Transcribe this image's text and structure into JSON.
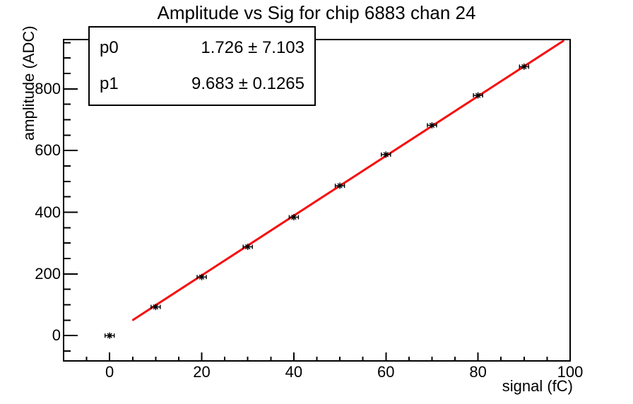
{
  "title": "Amplitude vs Sig for chip 6883 chan 24",
  "stats": {
    "rows": [
      {
        "label": "p0",
        "value": "1.726 ± 7.103"
      },
      {
        "label": "p1",
        "value": "9.683 ± 0.1265"
      }
    ]
  },
  "axes": {
    "x_title": "signal (fC)",
    "y_title": "amplitude (ADC)"
  },
  "colors": {
    "fit_line": "#f70d0d",
    "axis": "#000000",
    "marker": "#000000",
    "background": "#ffffff",
    "text": "#000000"
  },
  "chart_data": {
    "type": "scatter",
    "title": "Amplitude vs Sig for chip 6883 chan 24",
    "xlabel": "signal (fC)",
    "ylabel": "amplitude (ADC)",
    "x": [
      0,
      10,
      20,
      30,
      40,
      50,
      60,
      70,
      80,
      90
    ],
    "y": [
      0,
      93,
      190,
      288,
      384,
      486,
      587,
      682,
      779,
      872
    ],
    "x_err": 1.0,
    "marker_style": "star-with-x-error-bars",
    "xlim": [
      -10,
      100
    ],
    "ylim": [
      -82,
      960
    ],
    "x_major_ticks": [
      0,
      20,
      40,
      60,
      80,
      100
    ],
    "x_minor_step": 5,
    "y_major_ticks": [
      0,
      200,
      400,
      600,
      800
    ],
    "y_minor_step": 50,
    "grid": false,
    "legend": "none",
    "fit": {
      "model": "p0 + p1*x",
      "p0": 1.726,
      "p0_err": 7.103,
      "p1": 9.683,
      "p1_err": 0.1265,
      "x_start": 5.1,
      "x_end": 98.5
    }
  }
}
